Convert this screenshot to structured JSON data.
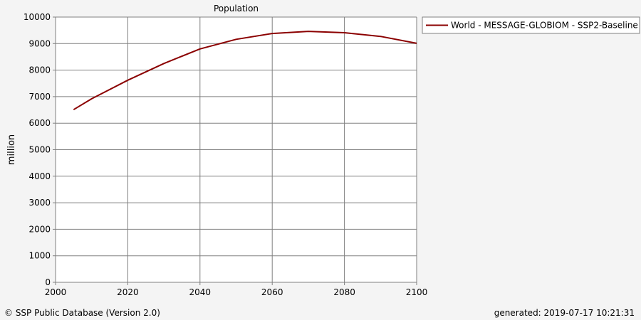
{
  "footer": {
    "copyright": "© SSP Public Database (Version 2.0)",
    "generated": "generated: 2019-07-17 10:21:31"
  },
  "colors": {
    "background": "#f4f4f4",
    "plot_area": "#ffffff",
    "grid": "#808080",
    "series_line": "#8b0000"
  },
  "chart_data": {
    "type": "line",
    "title": "Population",
    "xlabel": "",
    "ylabel": "million",
    "xlim": [
      2000,
      2100
    ],
    "ylim": [
      0,
      10000
    ],
    "x_ticks": [
      2000,
      2020,
      2040,
      2060,
      2080,
      2100
    ],
    "y_ticks": [
      0,
      1000,
      2000,
      3000,
      4000,
      5000,
      6000,
      7000,
      8000,
      9000,
      10000
    ],
    "grid": true,
    "legend_position": "top-right, outside plot",
    "series": [
      {
        "name": "World - MESSAGE-GLOBIOM - SSP2-Baseline",
        "color": "#8b0000",
        "x": [
          2005,
          2010,
          2020,
          2030,
          2040,
          2050,
          2060,
          2070,
          2080,
          2090,
          2100
        ],
        "y": [
          6510,
          6920,
          7620,
          8250,
          8800,
          9160,
          9380,
          9460,
          9410,
          9270,
          9010
        ]
      }
    ]
  }
}
